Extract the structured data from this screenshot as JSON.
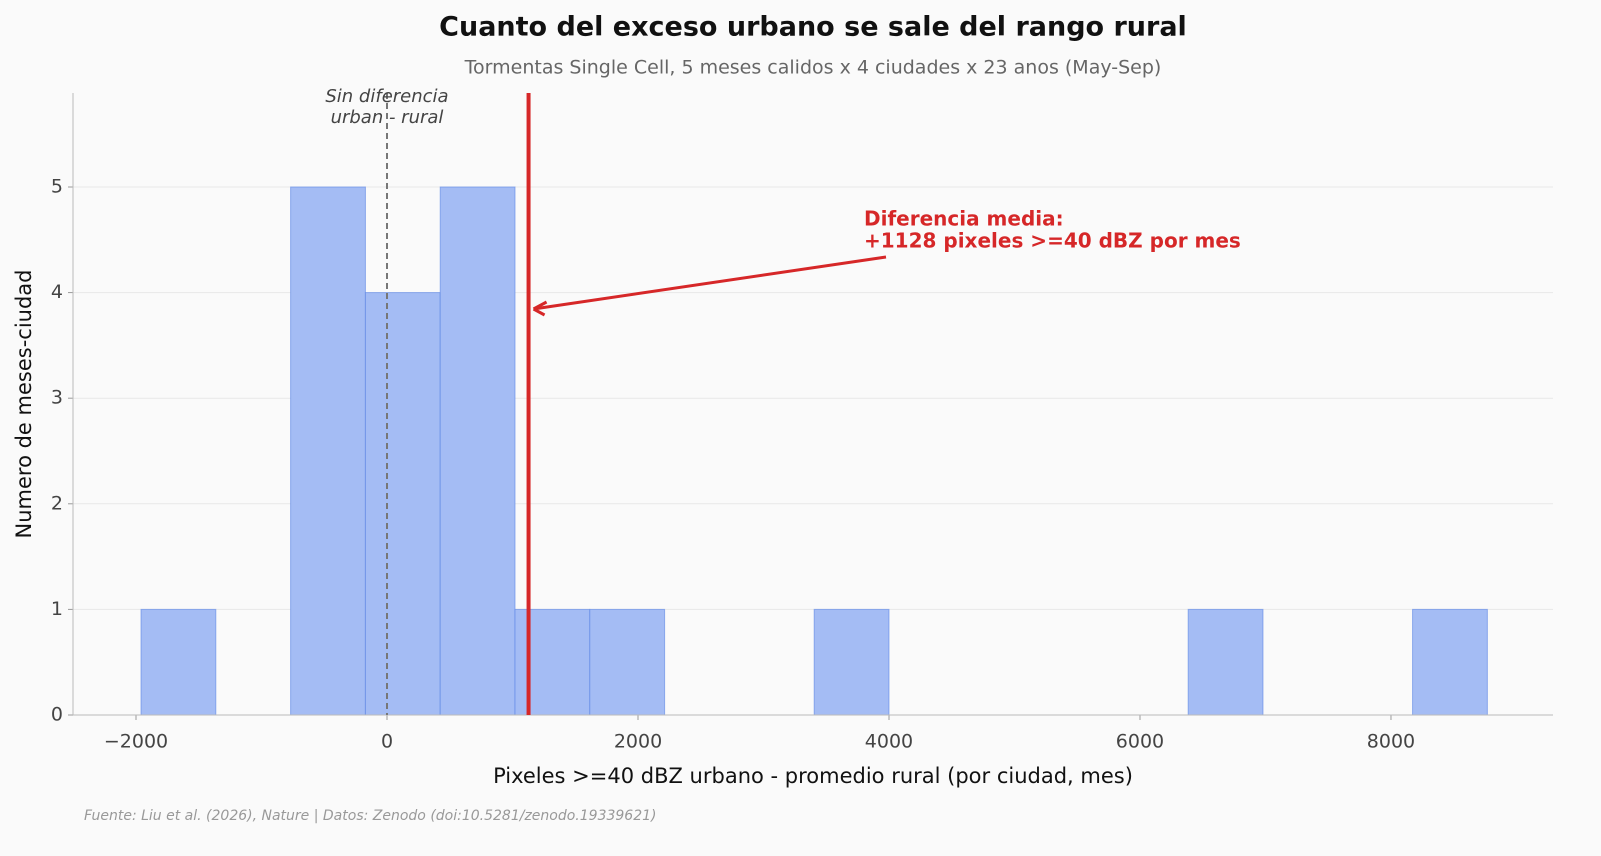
{
  "chart_data": {
    "type": "histogram",
    "title": "Cuanto del exceso urbano se sale del rango rural",
    "subtitle": "Tormentas Single Cell, 5 meses calidos x 4 ciudades x 23 anos (May-Sep)",
    "x_label": "Pixeles >=40 dBZ urbano  -  promedio rural (por ciudad, mes)",
    "y_label": "Numero de meses-ciudad",
    "bins": [
      -1960,
      -1364,
      -768,
      -172,
      424,
      1020,
      1616,
      2212,
      2808,
      3404,
      4000,
      4596,
      5192,
      5788,
      6384,
      6980,
      7576,
      8172,
      8768
    ],
    "counts": [
      1,
      0,
      5,
      4,
      5,
      1,
      1,
      0,
      0,
      1,
      0,
      0,
      0,
      0,
      1,
      0,
      0,
      1
    ],
    "color": "#a4bcf4",
    "edge_color": "#5b86e5",
    "xlim": [
      -2502,
      9291
    ],
    "ylim": [
      0,
      5.89
    ],
    "xticks": [
      {
        "value": -2000,
        "label": "−2000"
      },
      0,
      2000,
      4000,
      6000,
      8000
    ],
    "yticks": [
      0,
      1,
      2,
      3,
      4,
      5
    ],
    "grid": true,
    "reference_line": {
      "value": 0,
      "label_lines": [
        "Sin diferencia",
        "urban - rural"
      ]
    },
    "mean_line": {
      "value": 1128,
      "color": "#d62728",
      "label_lines": [
        "Diferencia media:",
        "+1128 pixeles >=40 dBZ por mes"
      ]
    },
    "source": "Fuente: Liu et al. (2026), Nature | Datos: Zenodo (doi:10.5281/zenodo.19339621)"
  }
}
